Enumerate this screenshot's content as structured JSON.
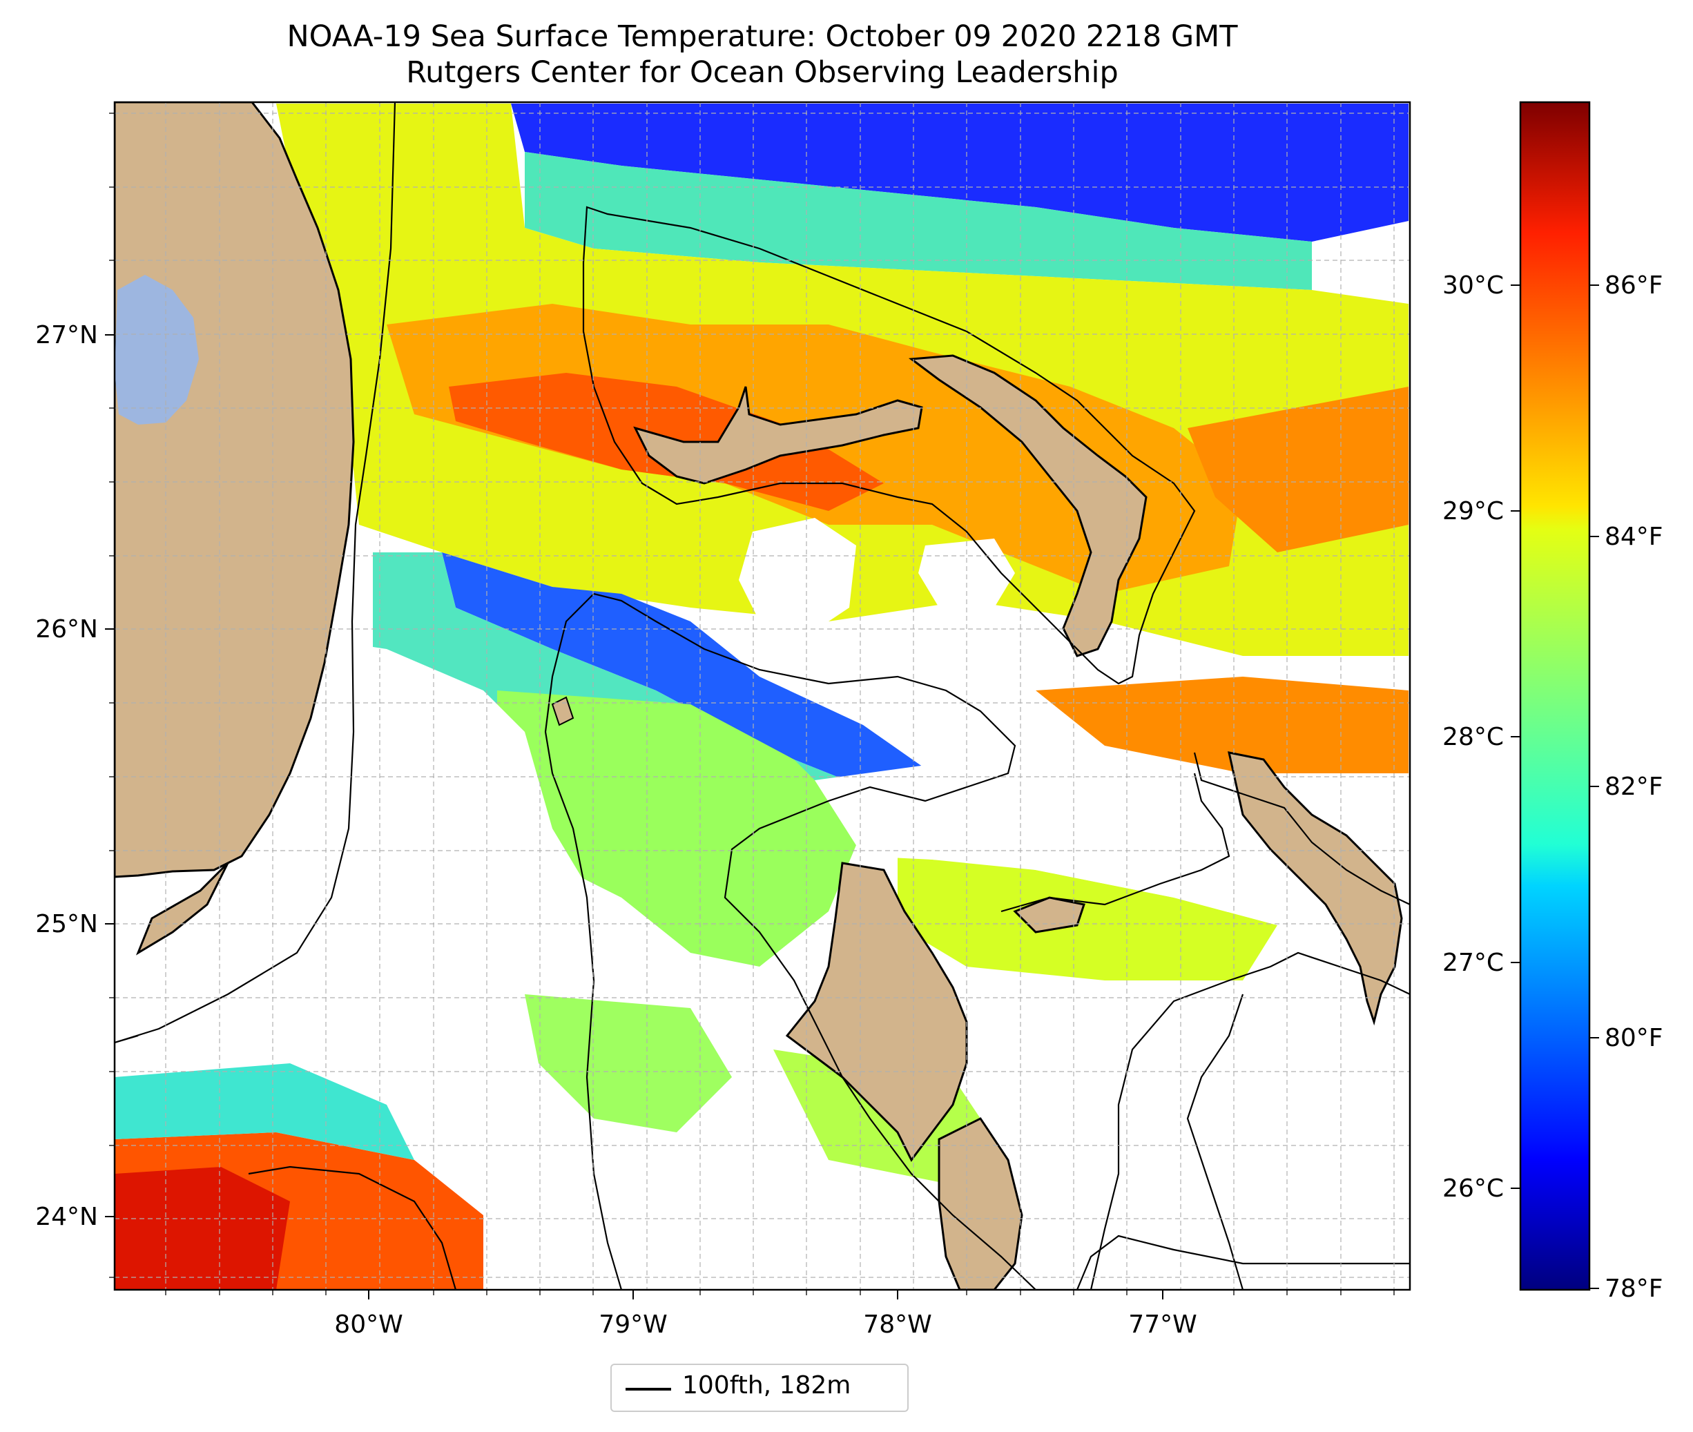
{
  "title": {
    "line1": "NOAA-19 Sea Surface Temperature: October 09 2020 2218 GMT",
    "line2": "Rutgers Center for Ocean Observing Leadership"
  },
  "axes": {
    "lon_ticks": [
      "80°W",
      "79°W",
      "78°W",
      "77°W"
    ],
    "lat_ticks": [
      "27°N",
      "26°N",
      "25°N",
      "24°N"
    ]
  },
  "colorbar": {
    "colormap": "jet",
    "celsius_ticks": [
      "30°C",
      "29°C",
      "28°C",
      "27°C",
      "26°C"
    ],
    "fahrenheit_ticks": [
      "86°F",
      "84°F",
      "82°F",
      "80°F",
      "78°F"
    ]
  },
  "legend": {
    "label": "100fth, 182m"
  },
  "colors": {
    "land": "#d2b48c",
    "lake": "#9db6e0",
    "coastline": "#000000",
    "gridline": "#b0b0b0",
    "no_data": "#ffffff"
  },
  "map": {
    "region": "South Florida / Straits of Florida / Northern Bahamas",
    "field": "sea surface temperature",
    "features": [
      "Florida peninsula",
      "Lake Okeechobee",
      "Grand Bahama",
      "Great Abaco",
      "Andros Island",
      "Bimini",
      "Eleuthera",
      "Florida Keys"
    ]
  }
}
